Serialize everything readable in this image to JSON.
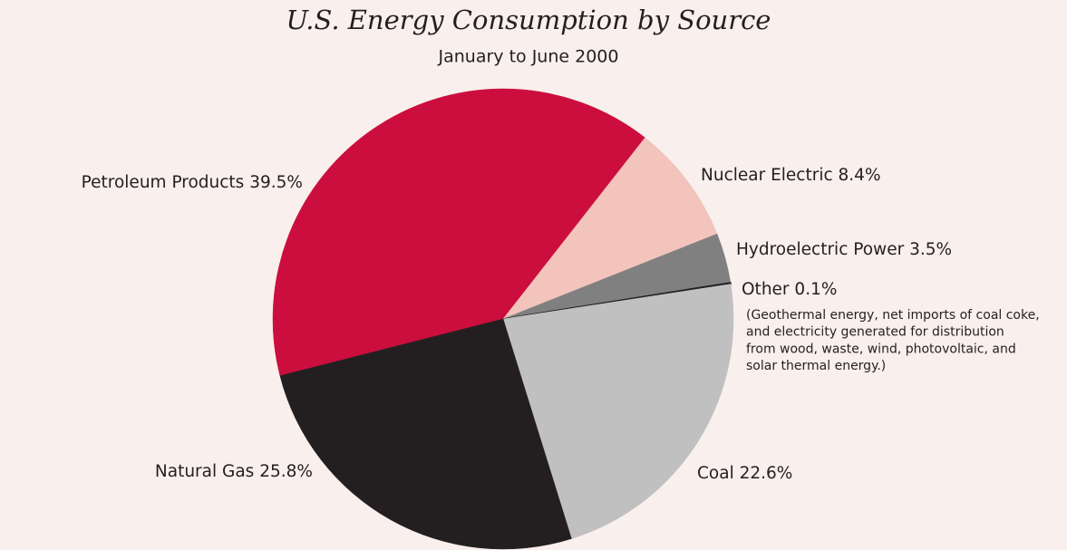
{
  "chart_data": {
    "type": "pie",
    "title": "U.S. Energy Consumption by Source",
    "subtitle": "January to June 2000",
    "categories": [
      "Petroleum Products",
      "Nuclear Electric",
      "Hydroelectric Power",
      "Other",
      "Coal",
      "Natural Gas"
    ],
    "values": [
      39.5,
      8.4,
      3.5,
      0.1,
      22.6,
      25.8
    ],
    "value_labels": [
      "39.5%",
      "8.4%",
      "3.5%",
      "0.1%",
      "22.6%",
      "25.8%"
    ],
    "colors": [
      "#cc0e3e",
      "#f2c4bc",
      "#808080",
      "#231f20",
      "#c0c0c0",
      "#231f20"
    ],
    "annotation": [
      "(Geothermal energy, net imports of coal coke,",
      "and electricity generated for distribution",
      "from wood, waste, wind, photovoltaic, and",
      "solar thermal energy.)"
    ]
  }
}
